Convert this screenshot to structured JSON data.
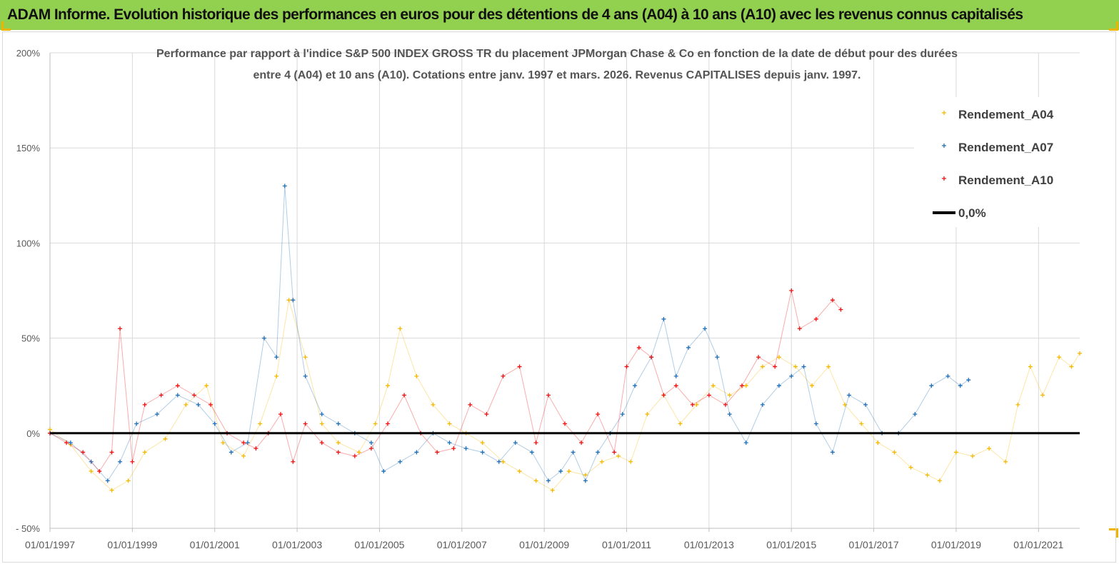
{
  "banner": {
    "title": "ADAM Informe. Evolution historique des performances en euros pour des détentions de 4 ans (A04) à 10 ans (A10) avec les revenus connus capitalisés"
  },
  "chart_data": {
    "type": "scatter",
    "title_lines": [
      "Performance par rapport à l'indice S&P 500 INDEX GROSS TR  du placement JPMorgan Chase & Co en fonction de la date de début pour des durées",
      "entre 4 (A04) et 10 ans (A10). Cotations entre janv. 1997 et mars. 2026. Revenus CAPITALISES depuis janv. 1997."
    ],
    "ylim": [
      -50,
      200
    ],
    "y_ticks": [
      -50,
      0,
      50,
      100,
      150,
      200
    ],
    "y_tick_labels": [
      "- 50%",
      "0%",
      "50%",
      "100%",
      "150%",
      "200%"
    ],
    "x_range": [
      1997.0,
      2022.0
    ],
    "x_tick_labels": [
      "01/01/1997",
      "01/01/1999",
      "01/01/2001",
      "01/01/2003",
      "01/01/2005",
      "01/01/2007",
      "01/01/2009",
      "01/01/2011",
      "01/01/2013",
      "01/01/2015",
      "01/01/2017",
      "01/01/2019",
      "01/01/2021"
    ],
    "x_tick_years": [
      1997,
      1999,
      2001,
      2003,
      2005,
      2007,
      2009,
      2011,
      2013,
      2015,
      2017,
      2019,
      2021
    ],
    "legend": [
      {
        "name": "Rendement_A04",
        "color": "#f5b800",
        "marker": "+"
      },
      {
        "name": "Rendement_A07",
        "color": "#1f6fb8",
        "marker": "+"
      },
      {
        "name": "Rendement_A10",
        "color": "#ee1111",
        "marker": "+"
      },
      {
        "name": "0,0%",
        "color": "#000000",
        "marker": "line"
      }
    ],
    "series": [
      {
        "name": "Rendement_A04",
        "color": "#f5b800",
        "x": [
          1997.0,
          1997.5,
          1998.0,
          1998.5,
          1998.9,
          1999.3,
          1999.8,
          2000.3,
          2000.8,
          2001.2,
          2001.7,
          2002.1,
          2002.5,
          2002.8,
          2003.2,
          2003.6,
          2004.0,
          2004.5,
          2004.9,
          2005.2,
          2005.5,
          2005.9,
          2006.3,
          2006.7,
          2007.1,
          2007.5,
          2008.0,
          2008.4,
          2008.8,
          2009.2,
          2009.6,
          2010.0,
          2010.4,
          2010.8,
          2011.1,
          2011.5,
          2011.9,
          2012.3,
          2012.7,
          2013.1,
          2013.5,
          2013.9,
          2014.3,
          2014.7,
          2015.1,
          2015.5,
          2015.9,
          2016.3,
          2016.7,
          2017.1,
          2017.5,
          2017.9,
          2018.3,
          2018.6,
          2019.0,
          2019.4,
          2019.8,
          2020.2,
          2020.5,
          2020.8,
          2021.1,
          2021.5,
          2021.8,
          2022.0
        ],
        "y": [
          2,
          -6,
          -20,
          -30,
          -25,
          -10,
          -3,
          15,
          25,
          -5,
          -12,
          5,
          30,
          70,
          40,
          5,
          -5,
          -10,
          5,
          25,
          55,
          30,
          15,
          5,
          0,
          -5,
          -15,
          -20,
          -25,
          -30,
          -20,
          -22,
          -15,
          -12,
          -15,
          10,
          20,
          5,
          15,
          25,
          20,
          25,
          35,
          40,
          35,
          25,
          35,
          15,
          5,
          -5,
          -10,
          -18,
          -22,
          -25,
          -10,
          -12,
          -8,
          -15,
          15,
          35,
          20,
          40,
          35,
          42
        ]
      },
      {
        "name": "Rendement_A07",
        "color": "#1f6fb8",
        "x": [
          1997.0,
          1997.5,
          1998.0,
          1998.4,
          1998.7,
          1999.1,
          1999.6,
          2000.1,
          2000.6,
          2001.0,
          2001.4,
          2001.8,
          2002.2,
          2002.5,
          2002.7,
          2002.9,
          2003.2,
          2003.6,
          2004.0,
          2004.4,
          2004.8,
          2005.1,
          2005.5,
          2005.9,
          2006.3,
          2006.7,
          2007.1,
          2007.5,
          2007.9,
          2008.3,
          2008.7,
          2009.1,
          2009.4,
          2009.7,
          2010.0,
          2010.3,
          2010.6,
          2010.9,
          2011.2,
          2011.6,
          2011.9,
          2012.2,
          2012.5,
          2012.9,
          2013.2,
          2013.5,
          2013.9,
          2014.3,
          2014.7,
          2015.0,
          2015.3,
          2015.6,
          2016.0,
          2016.4,
          2016.8,
          2017.2,
          2017.6,
          2018.0,
          2018.4,
          2018.8,
          2019.1,
          2019.3
        ],
        "y": [
          0,
          -5,
          -15,
          -25,
          -15,
          5,
          10,
          20,
          15,
          5,
          -10,
          -5,
          50,
          40,
          130,
          70,
          30,
          10,
          5,
          0,
          -5,
          -20,
          -15,
          -10,
          0,
          -5,
          -8,
          -10,
          -15,
          -5,
          -10,
          -25,
          -20,
          -10,
          -25,
          -10,
          0,
          10,
          25,
          40,
          60,
          30,
          45,
          55,
          40,
          10,
          -5,
          15,
          25,
          30,
          35,
          5,
          -10,
          20,
          15,
          0,
          0,
          10,
          25,
          30,
          25,
          28
        ]
      },
      {
        "name": "Rendement_A10",
        "color": "#ee1111",
        "x": [
          1997.0,
          1997.4,
          1997.8,
          1998.2,
          1998.5,
          1998.7,
          1999.0,
          1999.3,
          1999.7,
          2000.1,
          2000.5,
          2000.9,
          2001.3,
          2001.7,
          2002.0,
          2002.3,
          2002.6,
          2002.9,
          2003.2,
          2003.6,
          2004.0,
          2004.4,
          2004.8,
          2005.2,
          2005.6,
          2006.0,
          2006.4,
          2006.8,
          2007.2,
          2007.6,
          2008.0,
          2008.4,
          2008.8,
          2009.1,
          2009.5,
          2009.9,
          2010.3,
          2010.7,
          2011.0,
          2011.3,
          2011.6,
          2011.9,
          2012.2,
          2012.6,
          2013.0,
          2013.4,
          2013.8,
          2014.2,
          2014.6,
          2015.0,
          2015.2,
          2015.6,
          2016.0,
          2016.2
        ],
        "y": [
          0,
          -5,
          -10,
          -20,
          -10,
          55,
          -15,
          15,
          20,
          25,
          20,
          15,
          0,
          -5,
          -8,
          0,
          10,
          -15,
          5,
          -5,
          -10,
          -12,
          -8,
          5,
          20,
          0,
          -10,
          -8,
          15,
          10,
          30,
          35,
          -5,
          20,
          5,
          -5,
          10,
          -10,
          35,
          45,
          40,
          20,
          25,
          15,
          20,
          15,
          25,
          40,
          35,
          75,
          55,
          60,
          70,
          65
        ]
      },
      {
        "name": "0,0%",
        "color": "#000000",
        "x": [
          1997.0,
          2022.0
        ],
        "y": [
          0,
          0
        ]
      }
    ]
  }
}
